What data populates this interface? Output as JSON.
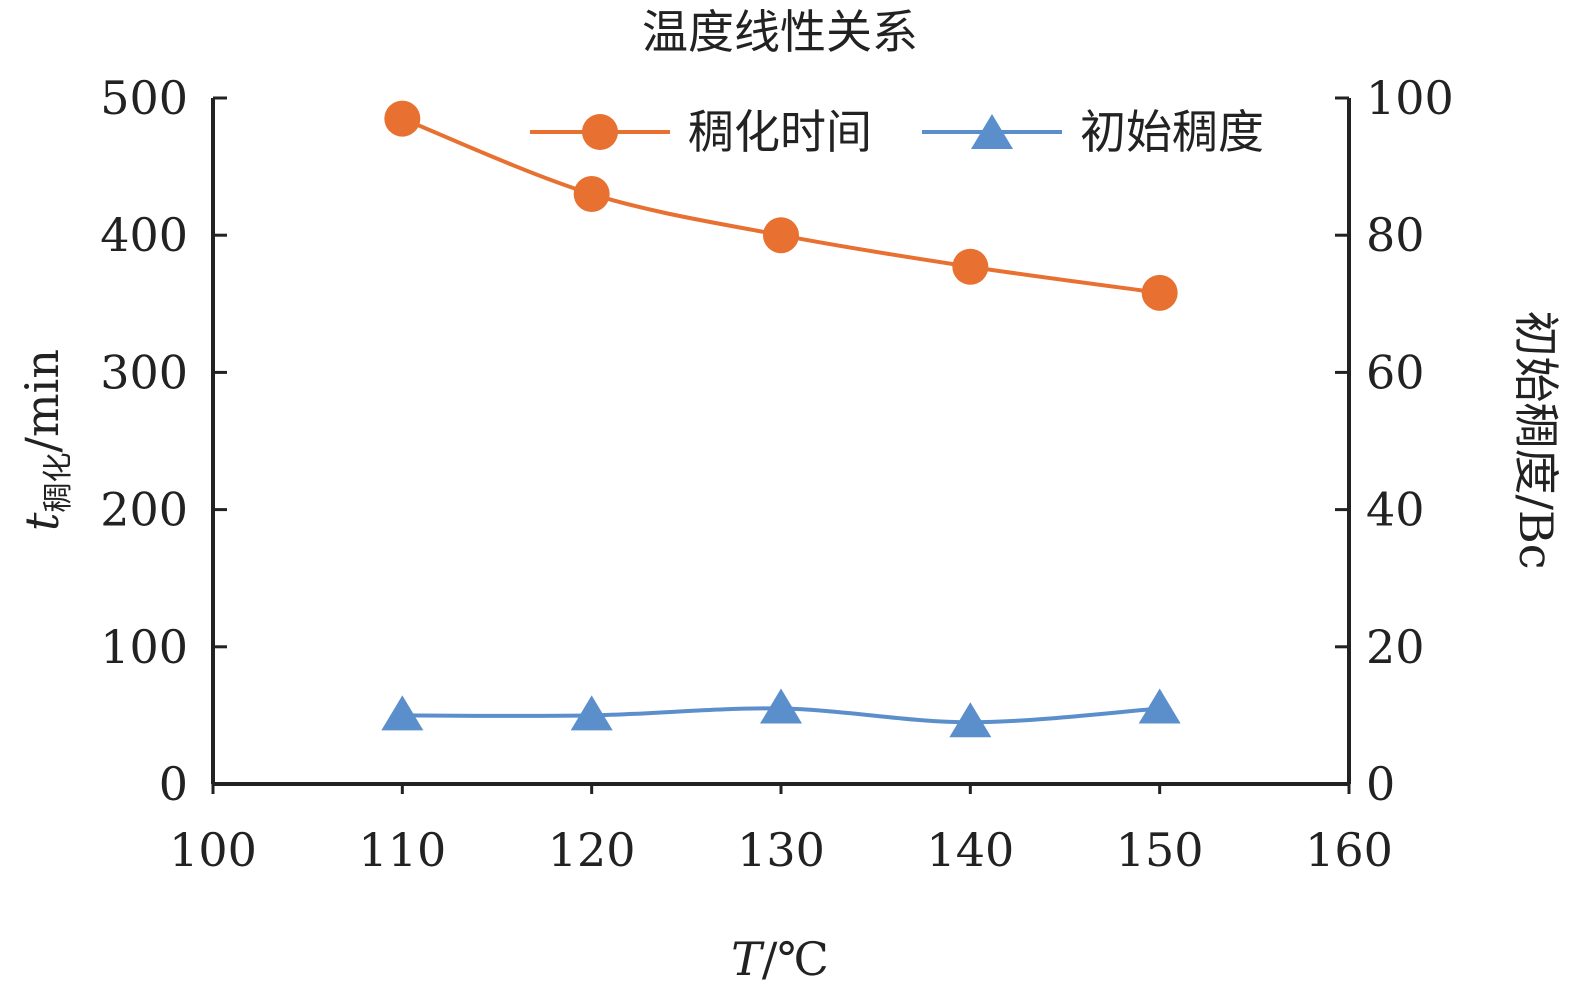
{
  "chart_data": {
    "type": "line",
    "title": "温度线性关系",
    "x": [
      110,
      120,
      130,
      140,
      150
    ],
    "xlabel": {
      "italic": "T",
      "rest": "/℃"
    },
    "ylabel_left": {
      "italic": "t",
      "sub": "稠化",
      "rest": "/min"
    },
    "ylabel_right": "初始稠度/Bc",
    "xlim": [
      100,
      160
    ],
    "ylim_left": [
      0,
      500
    ],
    "ylim_right": [
      0,
      100
    ],
    "x_ticks": [
      "100",
      "110",
      "120",
      "130",
      "140",
      "150",
      "160"
    ],
    "y_left_ticks": [
      "0",
      "100",
      "200",
      "300",
      "400",
      "500"
    ],
    "y_right_ticks": [
      "0",
      "20",
      "40",
      "60",
      "80",
      "100"
    ],
    "grid": false,
    "legend_position": "top-right",
    "series": [
      {
        "name": "稠化时间",
        "axis": "left",
        "marker": "circle",
        "color": "#E87030",
        "values": [
          485,
          430,
          400,
          377,
          358
        ]
      },
      {
        "name": "初始稠度",
        "axis": "right",
        "marker": "triangle",
        "color": "#5B8FCC",
        "values": [
          10,
          10,
          11,
          9,
          11
        ]
      }
    ]
  }
}
